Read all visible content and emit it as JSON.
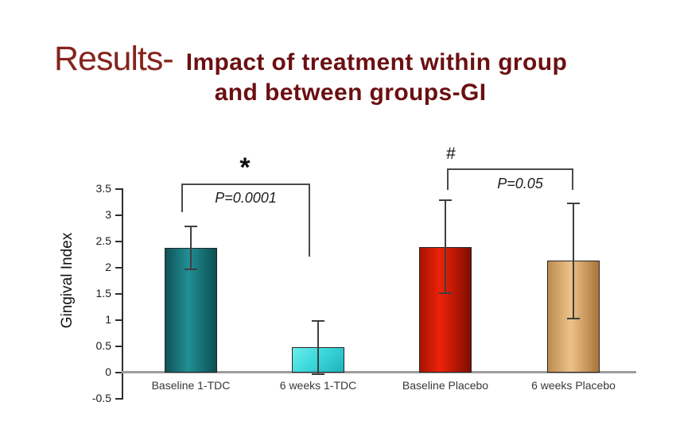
{
  "title": {
    "prefix": "Results-",
    "line1": "Impact of treatment within group",
    "line2": "and between groups-GI"
  },
  "colors": {
    "title_prefix_red": "#84241d",
    "title_maroon": "#6b0f11",
    "axis_gray": "#9c9c9c",
    "error_bar": "#3f3f3f"
  },
  "chart_data": {
    "type": "bar",
    "title": "Impact of treatment within group and between groups-GI",
    "xlabel": "",
    "ylabel": "Gingival Index",
    "ylim": [
      -0.5,
      3.5
    ],
    "yticks": [
      3.5,
      3,
      2.5,
      2,
      1.5,
      1,
      0.5,
      0,
      -0.5
    ],
    "grid": false,
    "legend": "none",
    "categories": [
      "Baseline 1-TDC",
      "6 weeks 1-TDC",
      "Baseline Placebo",
      "6 weeks Placebo"
    ],
    "values": [
      2.38,
      0.48,
      2.4,
      2.13
    ],
    "error_low": [
      1.95,
      -0.04,
      1.5,
      1.02
    ],
    "error_high": [
      2.8,
      1.0,
      3.3,
      3.25
    ],
    "bar_colors": [
      {
        "name": "dark-teal",
        "dir": "90deg",
        "stops": [
          "#0d5356",
          "#218f94 45%",
          "#0c4f52"
        ]
      },
      {
        "name": "light-cyan",
        "dir": "135deg",
        "stops": [
          "#6cedeb",
          "#3cd9dc 45%",
          "#1fb3bd"
        ]
      },
      {
        "name": "red",
        "dir": "90deg",
        "stops": [
          "#a81303",
          "#ee2209 40%",
          "#7f0d00"
        ]
      },
      {
        "name": "tan",
        "dir": "90deg",
        "stops": [
          "#bd8c4e",
          "#ecc28a 45%",
          "#a87438"
        ]
      }
    ],
    "annotations": [
      {
        "symbol": "*",
        "p_label": "P=0.0001",
        "between": [
          "Baseline 1-TDC",
          "6 weeks 1-TDC"
        ]
      },
      {
        "symbol": "#",
        "p_label": "P=0.05",
        "between": [
          "Baseline Placebo",
          "6 weeks Placebo"
        ]
      }
    ]
  }
}
